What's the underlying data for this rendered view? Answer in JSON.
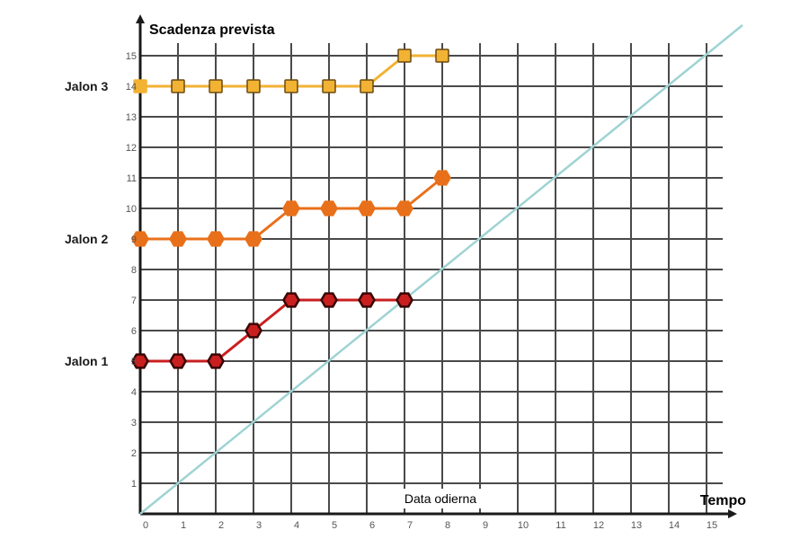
{
  "chart_data": {
    "type": "line",
    "y_title": "Scadenza prevista",
    "x_title": "Tempo",
    "today_label": "Data odierna",
    "xlim": [
      0,
      15
    ],
    "ylim": [
      0,
      15
    ],
    "x_ticks": [
      0,
      1,
      2,
      3,
      4,
      5,
      6,
      7,
      8,
      9,
      10,
      11,
      12,
      13,
      14,
      15
    ],
    "y_ticks": [
      1,
      2,
      3,
      4,
      5,
      6,
      7,
      8,
      9,
      10,
      11,
      12,
      13,
      14,
      15
    ],
    "grid": true,
    "y_category_labels": [
      {
        "label": "Jalon 3",
        "y": 14
      },
      {
        "label": "Jalon 2",
        "y": 9
      },
      {
        "label": "Jalon 1",
        "y": 5
      }
    ],
    "reference_line": {
      "from": [
        0,
        0
      ],
      "to": [
        15,
        15
      ],
      "color": "#9fd3d3"
    },
    "series": [
      {
        "name": "Jalon 3",
        "color": "#f2b233",
        "edge": "#f2b233",
        "marker": "square",
        "x": [
          0,
          1,
          2,
          3,
          4,
          5,
          6,
          7,
          8
        ],
        "y": [
          14,
          14,
          14,
          14,
          14,
          14,
          14,
          15,
          15
        ]
      },
      {
        "name": "Jalon 2",
        "color": "#e8701a",
        "edge": "#e8701a",
        "marker": "hexagon",
        "x": [
          0,
          1,
          2,
          3,
          4,
          5,
          6,
          7,
          8
        ],
        "y": [
          9,
          9,
          9,
          9,
          10,
          10,
          10,
          10,
          11
        ]
      },
      {
        "name": "Jalon 1",
        "color": "#c91f1f",
        "edge": "#3a0505",
        "marker": "hexagon",
        "x": [
          0,
          1,
          2,
          3,
          4,
          5,
          6,
          7
        ],
        "y": [
          5,
          5,
          5,
          6,
          7,
          7,
          7,
          7
        ]
      }
    ]
  }
}
